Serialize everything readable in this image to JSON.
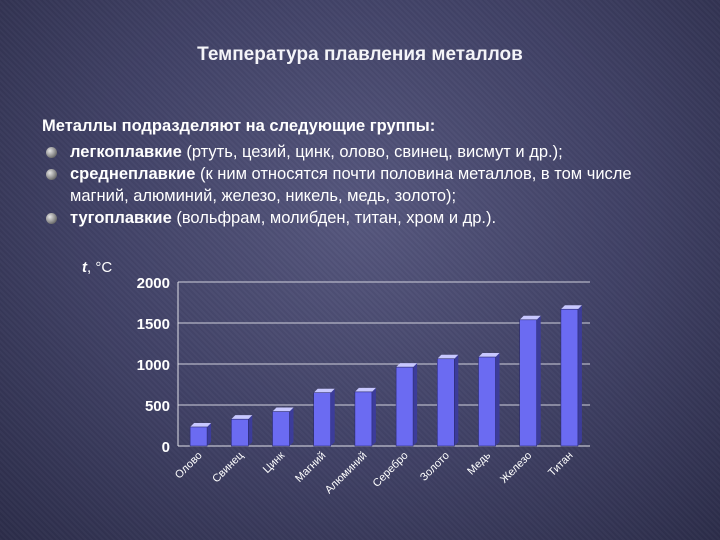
{
  "slide": {
    "title": "Температура плавления металлов",
    "intro": "Металлы подразделяют на следующие группы:",
    "groups": [
      {
        "name": "легкоплавкие",
        "desc": " (ртуть, цезий, цинк, олово, свинец, висмут и др.);"
      },
      {
        "name": "среднеплавкие",
        "desc": " (к ним относятся почти половина металлов, в том числе магний, алюминий, железо, никель, медь, золото);"
      },
      {
        "name": "тугоплавкие",
        "desc": " (вольфрам, молибден, титан, хром и др.)."
      }
    ]
  },
  "chart_data": {
    "type": "bar",
    "ylabel_var": "t",
    "ylabel_unit": ", °C",
    "categories": [
      "Олово",
      "Свинец",
      "Цинк",
      "Магний",
      "Алюминий",
      "Серебро",
      "Золото",
      "Медь",
      "Железо",
      "Титан"
    ],
    "values": [
      232,
      327,
      420,
      650,
      660,
      962,
      1064,
      1085,
      1539,
      1668
    ],
    "ylim": [
      0,
      2000
    ],
    "yticks": [
      "0",
      "500",
      "1000",
      "1500",
      "2000"
    ],
    "grid": true,
    "bar_color": "#6b6bf2"
  }
}
